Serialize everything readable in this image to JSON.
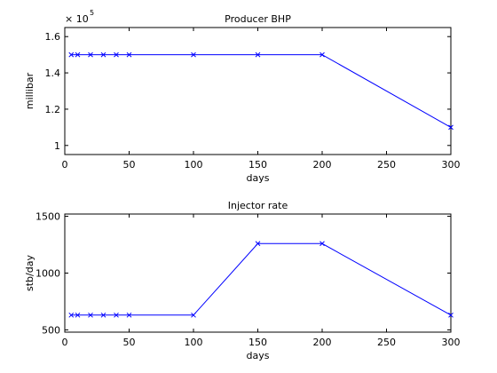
{
  "chart_data": [
    {
      "type": "line",
      "title": "Producer BHP",
      "xlabel": "days",
      "ylabel": "millibar",
      "y_exponent_base": "× 10",
      "y_exponent_power": "5",
      "xlim": [
        0,
        300
      ],
      "ylim": [
        0.95,
        1.65
      ],
      "xticks": [
        0,
        50,
        100,
        150,
        200,
        250,
        300
      ],
      "xtick_labels": [
        "0",
        "50",
        "100",
        "150",
        "200",
        "250",
        "300"
      ],
      "yticks": [
        1.0,
        1.2,
        1.4,
        1.6
      ],
      "ytick_labels": [
        "1",
        "1.2",
        "1.4",
        "1.6"
      ],
      "grid": false,
      "color": "#0000ff",
      "marker": "x",
      "series": [
        {
          "x": [
            5,
            10,
            20,
            30,
            40,
            50,
            100,
            150,
            200,
            300
          ],
          "y": [
            1.5,
            1.5,
            1.5,
            1.5,
            1.5,
            1.5,
            1.5,
            1.5,
            1.5,
            1.1
          ]
        }
      ]
    },
    {
      "type": "line",
      "title": "Injector rate",
      "xlabel": "days",
      "ylabel": "stb/day",
      "xlim": [
        0,
        300
      ],
      "ylim": [
        480,
        1520
      ],
      "xticks": [
        0,
        50,
        100,
        150,
        200,
        250,
        300
      ],
      "xtick_labels": [
        "0",
        "50",
        "100",
        "150",
        "200",
        "250",
        "300"
      ],
      "yticks": [
        500,
        1000,
        1500
      ],
      "ytick_labels": [
        "500",
        "1000",
        "1500"
      ],
      "grid": false,
      "color": "#0000ff",
      "marker": "x",
      "series": [
        {
          "x": [
            5,
            10,
            20,
            30,
            40,
            50,
            100,
            150,
            200,
            300
          ],
          "y": [
            630,
            630,
            630,
            630,
            630,
            630,
            630,
            1260,
            1260,
            630
          ]
        }
      ]
    }
  ]
}
